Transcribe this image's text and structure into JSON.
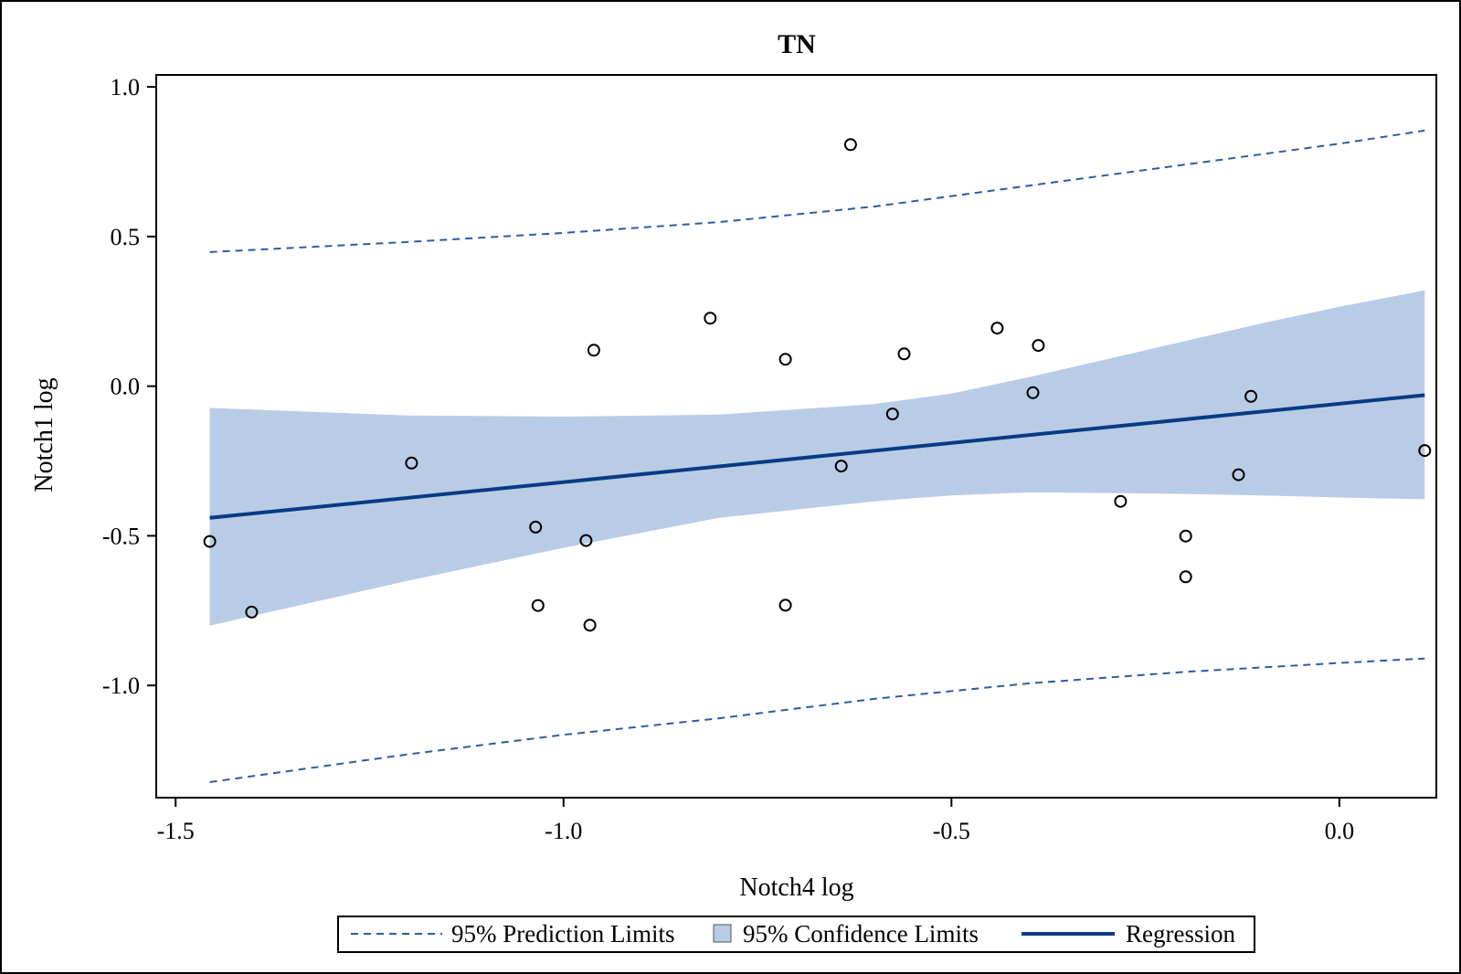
{
  "chart_data": {
    "type": "scatter",
    "title": "TN",
    "xlabel": "Notch4 log",
    "ylabel": "Notch1 log",
    "xlim": [
      -1.525,
      0.125
    ],
    "ylim": [
      -1.375,
      1.04
    ],
    "x_ticks": [
      -1.5,
      -1.0,
      -0.5,
      0.0
    ],
    "x_tick_labels": [
      "-1.5",
      "-1.0",
      "-0.5",
      "0.0"
    ],
    "y_ticks": [
      1.0,
      0.5,
      0.0,
      -0.5,
      -1.0
    ],
    "y_tick_labels": [
      "1.0",
      "0.5",
      "0.0",
      "-0.5",
      "-1.0"
    ],
    "grid": false,
    "legend_position": "bottom",
    "series": [
      {
        "name": "Observations",
        "type": "scatter",
        "marker": "open-circle",
        "color": "#000000",
        "points": [
          {
            "x": -1.456,
            "y": -0.519
          },
          {
            "x": -1.402,
            "y": -0.755
          },
          {
            "x": -1.196,
            "y": -0.257
          },
          {
            "x": -1.036,
            "y": -0.471
          },
          {
            "x": -1.033,
            "y": -0.733
          },
          {
            "x": -0.971,
            "y": -0.516
          },
          {
            "x": -0.966,
            "y": -0.799
          },
          {
            "x": -0.961,
            "y": 0.12
          },
          {
            "x": -0.811,
            "y": 0.227
          },
          {
            "x": -0.714,
            "y": 0.09
          },
          {
            "x": -0.714,
            "y": -0.732
          },
          {
            "x": -0.642,
            "y": -0.267
          },
          {
            "x": -0.63,
            "y": 0.807
          },
          {
            "x": -0.576,
            "y": -0.093
          },
          {
            "x": -0.561,
            "y": 0.108
          },
          {
            "x": -0.441,
            "y": 0.194
          },
          {
            "x": -0.395,
            "y": -0.022
          },
          {
            "x": -0.388,
            "y": 0.136
          },
          {
            "x": -0.282,
            "y": -0.385
          },
          {
            "x": -0.198,
            "y": -0.501
          },
          {
            "x": -0.198,
            "y": -0.637
          },
          {
            "x": -0.13,
            "y": -0.296
          },
          {
            "x": -0.114,
            "y": -0.034
          },
          {
            "x": 0.11,
            "y": -0.215
          }
        ]
      },
      {
        "name": "Regression",
        "type": "line",
        "color": "#0b3a83",
        "x": [
          -1.456,
          0.11
        ],
        "y": [
          -0.44,
          -0.03
        ]
      },
      {
        "name": "95% Confidence Limits",
        "type": "band",
        "color": "#b9cce6",
        "x": [
          -1.456,
          -1.2,
          -1.0,
          -0.8,
          -0.6,
          -0.5,
          -0.4,
          -0.3,
          -0.2,
          -0.1,
          0.0,
          0.11
        ],
        "lower": [
          -0.8,
          -0.65,
          -0.54,
          -0.44,
          -0.385,
          -0.365,
          -0.355,
          -0.357,
          -0.36,
          -0.365,
          -0.372,
          -0.378
        ],
        "upper": [
          -0.073,
          -0.098,
          -0.102,
          -0.095,
          -0.06,
          -0.025,
          0.03,
          0.09,
          0.15,
          0.21,
          0.265,
          0.32
        ]
      },
      {
        "name": "95% Prediction Limits",
        "type": "dashed-lines",
        "color": "#2e5c9e",
        "x": [
          -1.456,
          -1.2,
          -1.0,
          -0.8,
          -0.6,
          -0.4,
          -0.2,
          0.0,
          0.11
        ],
        "lower": [
          -1.323,
          -1.23,
          -1.165,
          -1.11,
          -1.045,
          -0.993,
          -0.955,
          -0.925,
          -0.91
        ],
        "upper": [
          0.448,
          0.482,
          0.512,
          0.548,
          0.6,
          0.67,
          0.74,
          0.81,
          0.854
        ]
      }
    ],
    "legend": [
      {
        "label": "95% Prediction Limits",
        "symbol": "dashed-line"
      },
      {
        "label": "95% Confidence Limits",
        "symbol": "filled-square"
      },
      {
        "label": "Regression",
        "symbol": "solid-line"
      }
    ]
  }
}
